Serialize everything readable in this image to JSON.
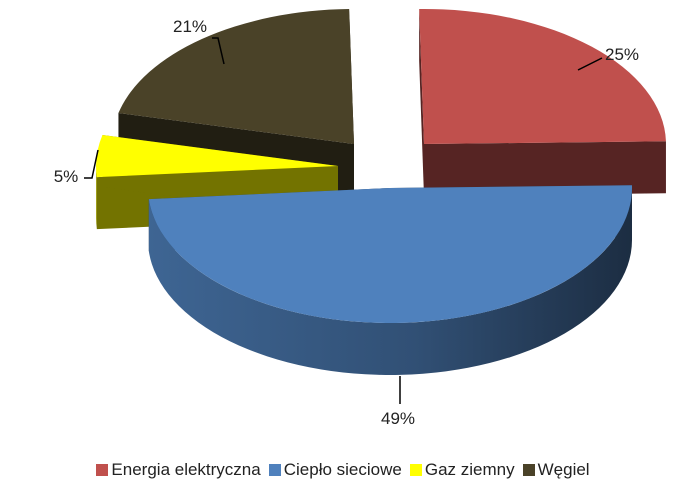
{
  "chart_data": {
    "type": "pie",
    "title": "",
    "categories": [
      "Energia elektryczna",
      "Ciepło sieciowe",
      "Gaz ziemny",
      "Węgiel"
    ],
    "values": [
      25,
      49,
      5,
      21
    ],
    "data_labels": [
      "25%",
      "49%",
      "5%",
      "21%"
    ],
    "colors": {
      "Energia elektryczna": "#C0504D",
      "Ciepło sieciowe": "#4F81BD",
      "Gaz ziemny": "#FFFF00",
      "Węgiel": "#4A4228"
    },
    "style": "3d-exploded-pie",
    "legend_position": "bottom"
  }
}
